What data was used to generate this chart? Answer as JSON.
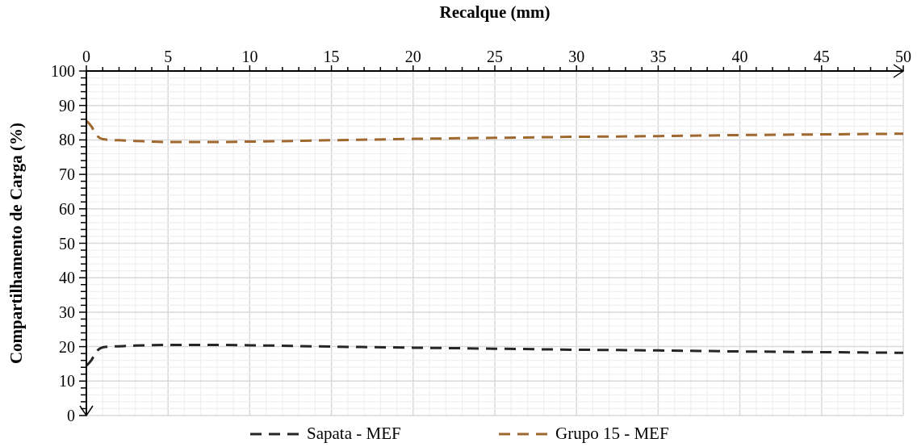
{
  "chart_data": {
    "type": "line",
    "xlabel": "Recalque (mm)",
    "ylabel": "Compartilhamento de Carga (%)",
    "xlim": [
      0,
      50
    ],
    "ylim": [
      0,
      100
    ],
    "xticks": [
      0,
      {
        "value": 1,
        "label": null
      },
      {
        "value": 2,
        "label": null
      },
      {
        "value": 3,
        "label": null
      },
      {
        "value": 4,
        "label": null
      },
      5,
      {
        "value": 6,
        "label": null
      },
      {
        "value": 7,
        "label": null
      },
      {
        "value": 8,
        "label": null
      },
      {
        "value": 9,
        "label": null
      },
      10,
      {
        "value": 11,
        "label": null
      },
      {
        "value": 12,
        "label": null
      },
      {
        "value": 13,
        "label": null
      },
      {
        "value": 14,
        "label": null
      },
      15,
      {
        "value": 16,
        "label": null
      },
      {
        "value": 17,
        "label": null
      },
      {
        "value": 18,
        "label": null
      },
      {
        "value": 19,
        "label": null
      },
      20,
      {
        "value": 21,
        "label": null
      },
      {
        "value": 22,
        "label": null
      },
      {
        "value": 23,
        "label": null
      },
      {
        "value": 24,
        "label": null
      },
      25,
      {
        "value": 26,
        "label": null
      },
      {
        "value": 27,
        "label": null
      },
      {
        "value": 28,
        "label": null
      },
      {
        "value": 29,
        "label": null
      },
      30,
      {
        "value": 31,
        "label": null
      },
      {
        "value": 32,
        "label": null
      },
      {
        "value": 33,
        "label": null
      },
      {
        "value": 34,
        "label": null
      },
      35,
      {
        "value": 36,
        "label": null
      },
      {
        "value": 37,
        "label": null
      },
      {
        "value": 38,
        "label": null
      },
      {
        "value": 39,
        "label": null
      },
      40,
      {
        "value": 41,
        "label": null
      },
      {
        "value": 42,
        "label": null
      },
      {
        "value": 43,
        "label": null
      },
      {
        "value": 44,
        "label": null
      },
      45,
      {
        "value": 46,
        "label": null
      },
      {
        "value": 47,
        "label": null
      },
      {
        "value": 48,
        "label": null
      },
      {
        "value": 49,
        "label": null
      },
      50
    ],
    "yticks": [
      0,
      {
        "value": 2,
        "label": null
      },
      {
        "value": 4,
        "label": null
      },
      {
        "value": 6,
        "label": null
      },
      {
        "value": 8,
        "label": null
      },
      10,
      {
        "value": 12,
        "label": null
      },
      {
        "value": 14,
        "label": null
      },
      {
        "value": 16,
        "label": null
      },
      {
        "value": 18,
        "label": null
      },
      20,
      {
        "value": 22,
        "label": null
      },
      {
        "value": 24,
        "label": null
      },
      {
        "value": 26,
        "label": null
      },
      {
        "value": 28,
        "label": null
      },
      30,
      {
        "value": 32,
        "label": null
      },
      {
        "value": 34,
        "label": null
      },
      {
        "value": 36,
        "label": null
      },
      {
        "value": 38,
        "label": null
      },
      40,
      {
        "value": 42,
        "label": null
      },
      {
        "value": 44,
        "label": null
      },
      {
        "value": 46,
        "label": null
      },
      {
        "value": 48,
        "label": null
      },
      50,
      {
        "value": 52,
        "label": null
      },
      {
        "value": 54,
        "label": null
      },
      {
        "value": 56,
        "label": null
      },
      {
        "value": 58,
        "label": null
      },
      60,
      {
        "value": 62,
        "label": null
      },
      {
        "value": 64,
        "label": null
      },
      {
        "value": 66,
        "label": null
      },
      {
        "value": 68,
        "label": null
      },
      70,
      {
        "value": 72,
        "label": null
      },
      {
        "value": 74,
        "label": null
      },
      {
        "value": 76,
        "label": null
      },
      {
        "value": 78,
        "label": null
      },
      80,
      {
        "value": 82,
        "label": null
      },
      {
        "value": 84,
        "label": null
      },
      {
        "value": 86,
        "label": null
      },
      {
        "value": 88,
        "label": null
      },
      90,
      {
        "value": 92,
        "label": null
      },
      {
        "value": 94,
        "label": null
      },
      {
        "value": 96,
        "label": null
      },
      {
        "value": 98,
        "label": null
      },
      100
    ],
    "grid": true,
    "legend": "bottom",
    "line_style": "dashed",
    "marker": "none",
    "x": [
      0,
      0.3,
      0.6,
      1,
      1.5,
      2,
      3,
      5,
      8,
      10,
      15,
      20,
      25,
      30,
      35,
      40,
      45,
      50
    ],
    "series": [
      {
        "name": "Sapata - MEF",
        "color": "#262626",
        "values": [
          14.5,
          16,
          18.5,
          19.8,
          20,
          20.1,
          20.3,
          20.5,
          20.5,
          20.4,
          20,
          19.7,
          19.4,
          19.1,
          18.9,
          18.6,
          18.4,
          18.2
        ]
      },
      {
        "name": "Grupo 15 - MEF",
        "color": "#a0672e",
        "values": [
          85.5,
          84,
          81.5,
          80.2,
          80,
          79.9,
          79.7,
          79.4,
          79.4,
          79.5,
          79.9,
          80.3,
          80.6,
          80.9,
          81.1,
          81.4,
          81.6,
          81.8
        ]
      }
    ]
  }
}
